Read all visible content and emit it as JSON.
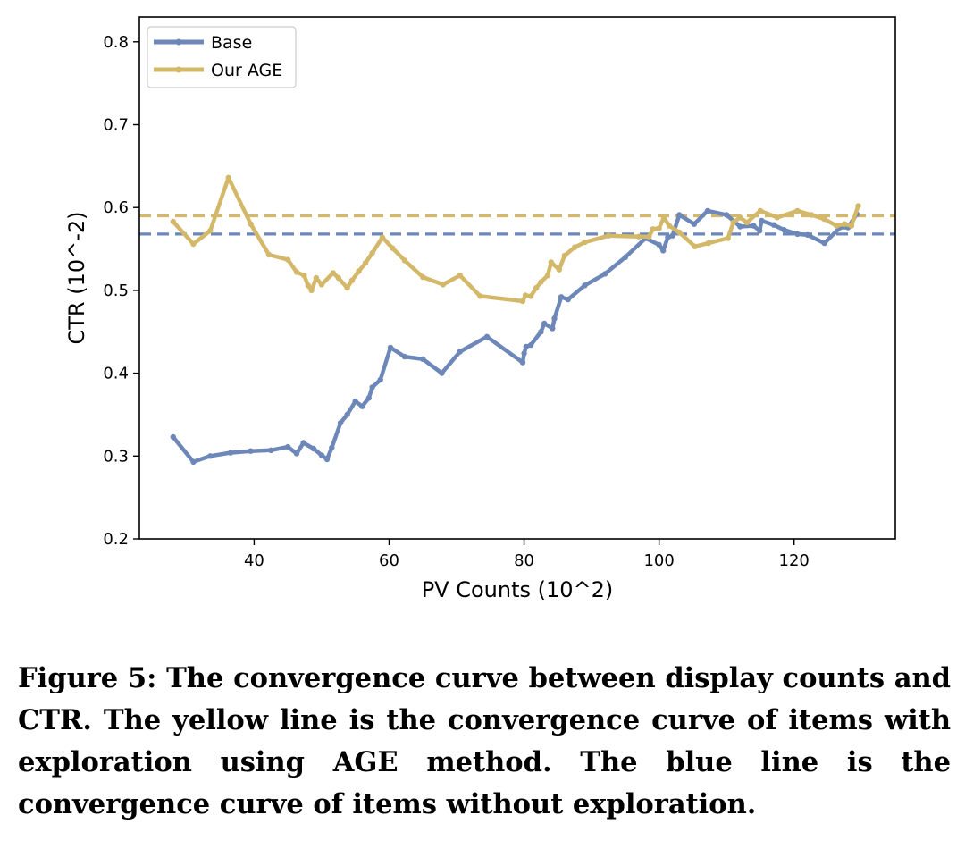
{
  "chart_data": {
    "type": "line",
    "xlabel": "PV Counts (10^2)",
    "ylabel": "CTR (10^-2)",
    "xlim": [
      23,
      135
    ],
    "ylim": [
      0.2,
      0.83
    ],
    "xticks": [
      "40",
      "60",
      "80",
      "100",
      "120"
    ],
    "yticks": [
      "0.2",
      "0.3",
      "0.4",
      "0.5",
      "0.6",
      "0.7",
      "0.8"
    ],
    "legend_position": "top-left",
    "grid": false,
    "series": [
      {
        "name": "Base",
        "color": "#6d87b9",
        "reference_line": 0.568,
        "points": [
          [
            28,
            0.323
          ],
          [
            31,
            0.293
          ],
          [
            33.5,
            0.3
          ],
          [
            36.5,
            0.304
          ],
          [
            39.5,
            0.306
          ],
          [
            42.5,
            0.307
          ],
          [
            45,
            0.311
          ],
          [
            46.3,
            0.303
          ],
          [
            47.3,
            0.316
          ],
          [
            48.8,
            0.309
          ],
          [
            50,
            0.301
          ],
          [
            50.8,
            0.296
          ],
          [
            51.5,
            0.31
          ],
          [
            52.8,
            0.34
          ],
          [
            53.8,
            0.35
          ],
          [
            55,
            0.366
          ],
          [
            56,
            0.36
          ],
          [
            57,
            0.37
          ],
          [
            57.5,
            0.383
          ],
          [
            58.7,
            0.392
          ],
          [
            60.2,
            0.431
          ],
          [
            62.3,
            0.42
          ],
          [
            65,
            0.417
          ],
          [
            67.8,
            0.4
          ],
          [
            70.5,
            0.426
          ],
          [
            74.5,
            0.444
          ],
          [
            79.8,
            0.413
          ],
          [
            80,
            0.424
          ],
          [
            80.3,
            0.432
          ],
          [
            81,
            0.434
          ],
          [
            82.5,
            0.45
          ],
          [
            83,
            0.46
          ],
          [
            84.2,
            0.454
          ],
          [
            84.5,
            0.466
          ],
          [
            85.5,
            0.492
          ],
          [
            86.5,
            0.489
          ],
          [
            89,
            0.506
          ],
          [
            92,
            0.52
          ],
          [
            95,
            0.54
          ],
          [
            98,
            0.563
          ],
          [
            100,
            0.555
          ],
          [
            100.6,
            0.548
          ],
          [
            101.3,
            0.564
          ],
          [
            102,
            0.566
          ],
          [
            103,
            0.591
          ],
          [
            105.2,
            0.58
          ],
          [
            107.2,
            0.596
          ],
          [
            110,
            0.591
          ],
          [
            112,
            0.577
          ],
          [
            114,
            0.578
          ],
          [
            114.9,
            0.572
          ],
          [
            115.2,
            0.584
          ],
          [
            117,
            0.579
          ],
          [
            118.5,
            0.573
          ],
          [
            120.5,
            0.568
          ],
          [
            122,
            0.567
          ],
          [
            124.5,
            0.557
          ],
          [
            126.8,
            0.576
          ],
          [
            128,
            0.576
          ],
          [
            129.3,
            0.592
          ]
        ]
      },
      {
        "name": "Our AGE",
        "color": "#d4b86a",
        "reference_line": 0.59,
        "points": [
          [
            28,
            0.583
          ],
          [
            31,
            0.556
          ],
          [
            33.5,
            0.572
          ],
          [
            36.2,
            0.636
          ],
          [
            39.5,
            0.58
          ],
          [
            42.2,
            0.543
          ],
          [
            45,
            0.537
          ],
          [
            46.3,
            0.522
          ],
          [
            47.4,
            0.518
          ],
          [
            48,
            0.506
          ],
          [
            48.5,
            0.5
          ],
          [
            49.2,
            0.515
          ],
          [
            50,
            0.507
          ],
          [
            51.7,
            0.521
          ],
          [
            52.5,
            0.515
          ],
          [
            53.8,
            0.503
          ],
          [
            54.5,
            0.512
          ],
          [
            55.5,
            0.523
          ],
          [
            56.5,
            0.533
          ],
          [
            57.5,
            0.545
          ],
          [
            59,
            0.564
          ],
          [
            60.5,
            0.551
          ],
          [
            62.3,
            0.536
          ],
          [
            65,
            0.516
          ],
          [
            68,
            0.507
          ],
          [
            70.5,
            0.518
          ],
          [
            73.5,
            0.493
          ],
          [
            79.8,
            0.487
          ],
          [
            80.2,
            0.494
          ],
          [
            81,
            0.493
          ],
          [
            81.8,
            0.503
          ],
          [
            82.5,
            0.51
          ],
          [
            83.5,
            0.518
          ],
          [
            84,
            0.534
          ],
          [
            85.2,
            0.525
          ],
          [
            86,
            0.542
          ],
          [
            87.5,
            0.552
          ],
          [
            89,
            0.558
          ],
          [
            92.5,
            0.566
          ],
          [
            97,
            0.565
          ],
          [
            98.5,
            0.565
          ],
          [
            99.1,
            0.574
          ],
          [
            100,
            0.575
          ],
          [
            100.7,
            0.588
          ],
          [
            101.5,
            0.578
          ],
          [
            103,
            0.57
          ],
          [
            105.3,
            0.553
          ],
          [
            107.3,
            0.557
          ],
          [
            110.2,
            0.563
          ],
          [
            111,
            0.582
          ],
          [
            112,
            0.588
          ],
          [
            113,
            0.582
          ],
          [
            115,
            0.596
          ],
          [
            117.5,
            0.588
          ],
          [
            120.5,
            0.596
          ],
          [
            122.6,
            0.591
          ],
          [
            124.5,
            0.586
          ],
          [
            126.3,
            0.578
          ],
          [
            127.5,
            0.58
          ],
          [
            128.5,
            0.578
          ],
          [
            129.5,
            0.602
          ]
        ]
      }
    ]
  },
  "caption": "Figure 5: The convergence curve between display counts and CTR. The yellow line is the convergence curve of items with exploration using AGE method. The blue line is the convergence curve of items without exploration."
}
